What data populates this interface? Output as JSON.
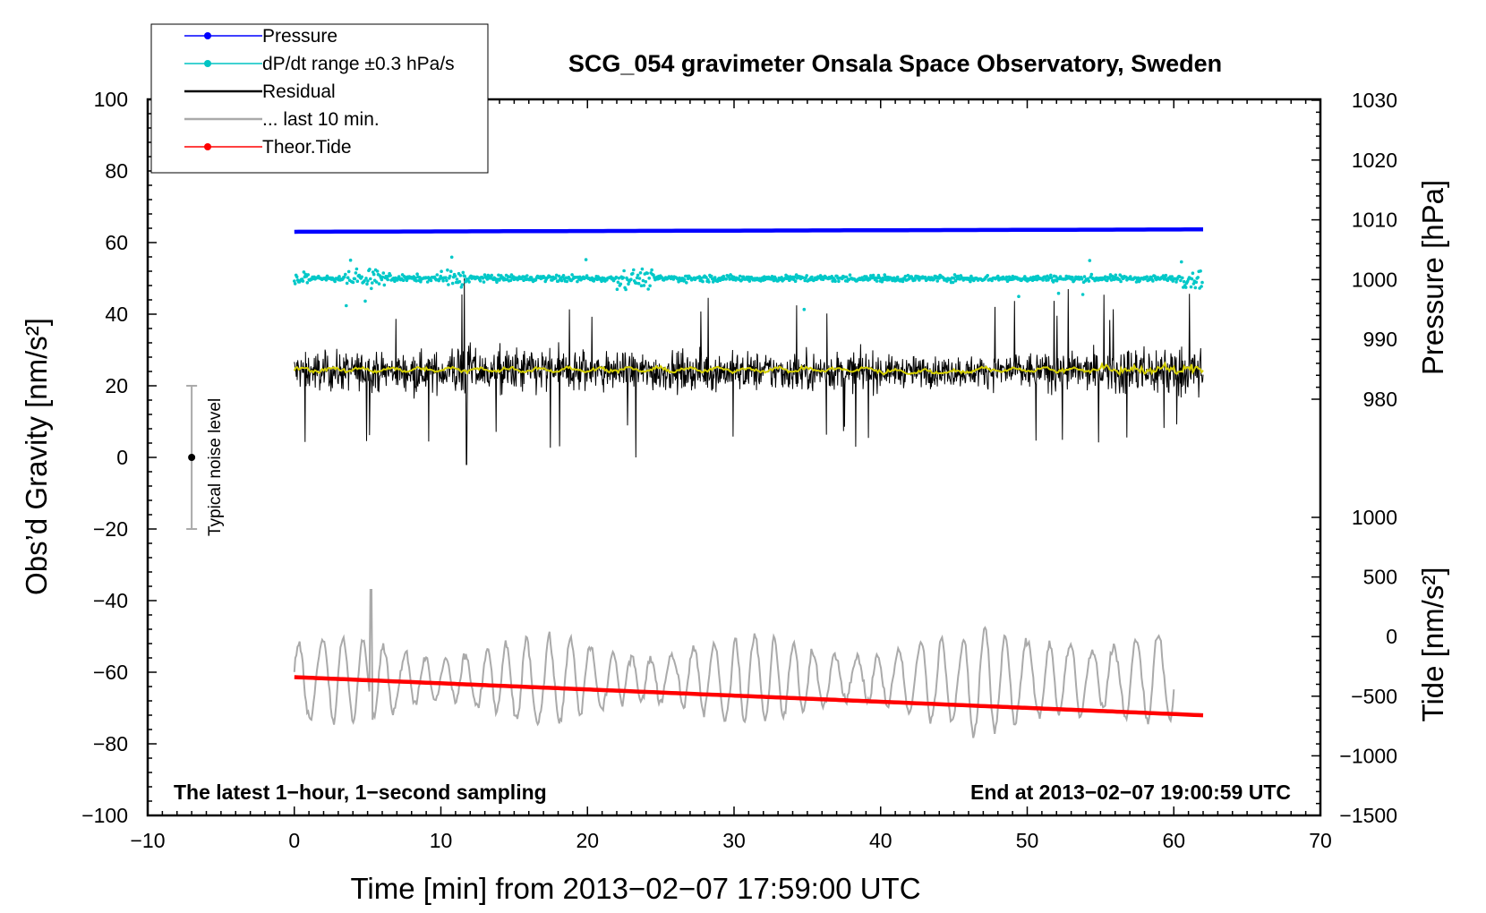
{
  "chart_data": {
    "type": "line",
    "title": "SCG_054 gravimeter Onsala Space Observatory, Sweden",
    "xlabel": "Time [min] from 2013−02−07 17:59:00 UTC",
    "ylabel_left": "Obs’d Gravity [nm/s²]",
    "ylabel_right_top": "Pressure [hPa]",
    "ylabel_right_bottom": "Tide [nm/s²]",
    "xlim": [
      -10,
      70
    ],
    "ylim_left": [
      -100,
      100
    ],
    "ylim_pressure": [
      980,
      1030
    ],
    "ylim_tide": [
      -1500,
      1000
    ],
    "x_ticks": [
      "−10",
      "0",
      "10",
      "20",
      "30",
      "40",
      "50",
      "60",
      "70"
    ],
    "y_left_ticks": [
      "100",
      "80",
      "60",
      "40",
      "20",
      "0",
      "−20",
      "−40",
      "−60",
      "−80",
      "−100"
    ],
    "y_pressure_ticks": [
      "1030",
      "1020",
      "1010",
      "1000",
      "990",
      "980"
    ],
    "y_tide_ticks": [
      "1000",
      "500",
      "0",
      "−500",
      "−1000",
      "−1500"
    ],
    "legend": [
      {
        "label": "Pressure",
        "color": "#0000ff",
        "marker": true
      },
      {
        "label": "dP/dt range ±0.3 hPa/s",
        "color": "#00c4c4",
        "marker": true
      },
      {
        "label": "Residual",
        "color": "#000000",
        "marker": false
      },
      {
        "label": "... last 10 min.",
        "color": "#aaaaaa",
        "marker": false
      },
      {
        "label": "Theor.Tide",
        "color": "#ff0000",
        "marker": true
      }
    ],
    "series": [
      {
        "name": "Pressure",
        "unit": "hPa",
        "t_range": [
          0,
          62
        ],
        "start": 1008,
        "end": 1008.4
      },
      {
        "name": "dP/dt range ±0.3 hPa/s",
        "unit": "obs gravity axis",
        "t_range": [
          0,
          62
        ],
        "center": 50,
        "spread": 1
      },
      {
        "name": "Residual",
        "unit": "nm/s²",
        "t_range": [
          0,
          62
        ],
        "center": 24,
        "typical_min": 8,
        "typical_max": 38,
        "extreme_min": -2,
        "extreme_max": 50
      },
      {
        "name": "Residual smoothed",
        "unit": "nm/s²",
        "t_range": [
          0,
          62
        ],
        "center": 24.5
      },
      {
        "name": "... last 10 min.",
        "unit": "nm/s²",
        "t_range": [
          0,
          60
        ],
        "center": -62,
        "min": -82,
        "max": -37
      },
      {
        "name": "Theor.Tide",
        "unit": "nm/s²",
        "t_range": [
          0,
          62
        ],
        "start": -340,
        "end": -660
      }
    ],
    "noise_bar": {
      "label": "Typical noise level",
      "x": -7,
      "center": 0,
      "low": -20,
      "high": 20
    },
    "annotations": {
      "left": "The latest 1−hour, 1−second sampling",
      "right": "End at 2013−02−07 19:00:59 UTC"
    }
  }
}
